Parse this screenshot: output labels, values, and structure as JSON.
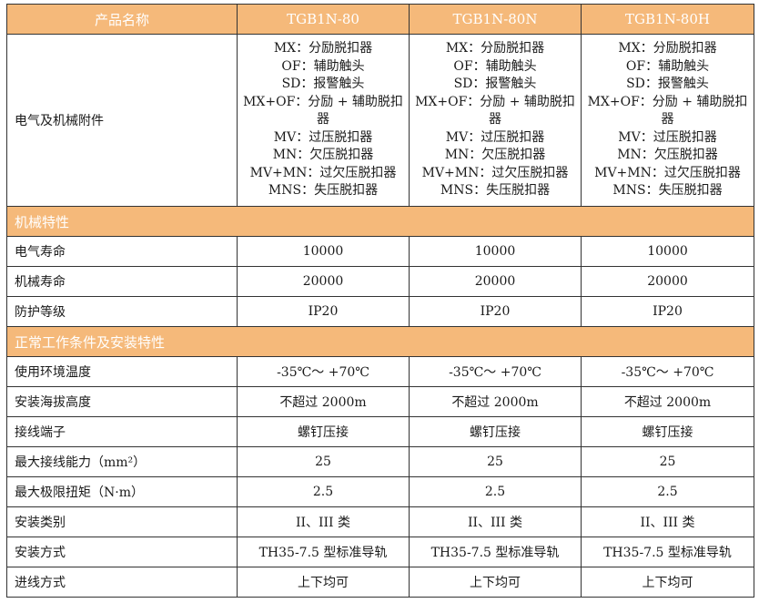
{
  "header": {
    "label": "产品名称",
    "models": [
      "TGB1N-80",
      "TGB1N-80N",
      "TGB1N-80H"
    ]
  },
  "accessories": {
    "label": "电气及机械附件",
    "items": [
      "MX：分励脱扣器",
      "OF：辅助触头",
      "SD：报警触头",
      "MX+OF：分励 + 辅助脱扣器",
      "MV：过压脱扣器",
      "MN：欠压脱扣器",
      "MV+MN：过欠压脱扣器",
      "MNS：失压脱扣器"
    ]
  },
  "sections": [
    {
      "title": "机械特性",
      "rows": [
        {
          "label": "电气寿命",
          "values": [
            "10000",
            "10000",
            "10000"
          ]
        },
        {
          "label": "机械寿命",
          "values": [
            "20000",
            "20000",
            "20000"
          ]
        },
        {
          "label": "防护等级",
          "values": [
            "IP20",
            "IP20",
            "IP20"
          ]
        }
      ]
    },
    {
      "title": "正常工作条件及安装特性",
      "rows": [
        {
          "label": "使用环境温度",
          "values": [
            "-35℃～ +70℃",
            "-35℃～ +70℃",
            "-35℃～ +70℃"
          ]
        },
        {
          "label": "安装海拔高度",
          "values": [
            "不超过 2000m",
            "不超过 2000m",
            "不超过 2000m"
          ]
        },
        {
          "label": "接线端子",
          "values": [
            "螺钉压接",
            "螺钉压接",
            "螺钉压接"
          ]
        },
        {
          "label": "最大接线能力（mm²）",
          "values": [
            "25",
            "25",
            "25"
          ]
        },
        {
          "label": "最大极限扭矩（N·m）",
          "values": [
            "2.5",
            "2.5",
            "2.5"
          ]
        },
        {
          "label": "安装类别",
          "values": [
            "II、III 类",
            "II、III 类",
            "II、III 类"
          ]
        },
        {
          "label": "安装方式",
          "values": [
            "TH35-7.5 型标准导轨",
            "TH35-7.5 型标准导轨",
            "TH35-7.5 型标准导轨"
          ]
        },
        {
          "label": "进线方式",
          "values": [
            "上下均可",
            "上下均可",
            "上下均可"
          ]
        }
      ]
    }
  ],
  "colors": {
    "header_bg": "#F5B97A",
    "header_text": "#FFFFFF"
  }
}
